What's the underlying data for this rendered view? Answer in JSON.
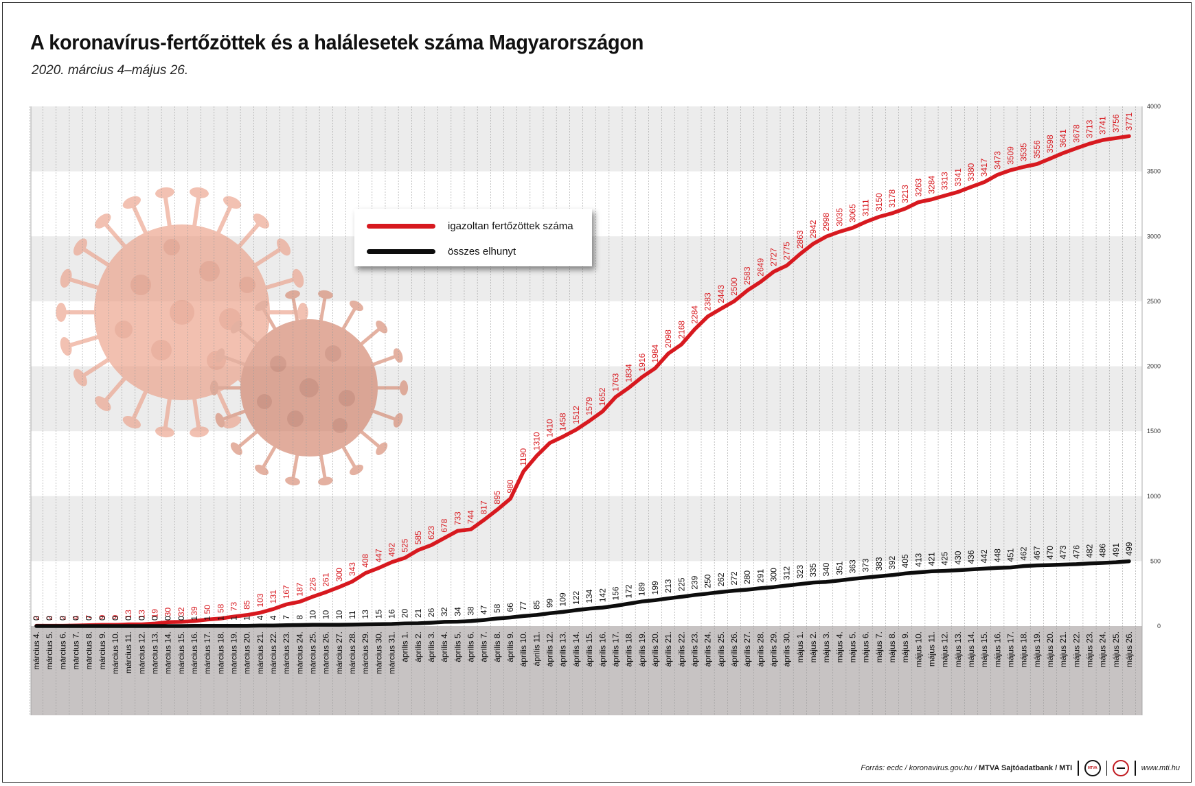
{
  "title": "A koronavírus-fertőzöttek és a halálesetek száma Magyarországon",
  "subtitle": "2020. március 4–május 26.",
  "legend": {
    "infected_label": "igazoltan fertőzöttek száma",
    "deaths_label": "összes elhunyt"
  },
  "colors": {
    "infected": "#d7191f",
    "deaths": "#0d0d0d",
    "band_gray": "#ececec",
    "date_band": "#c7c3c3"
  },
  "footer": {
    "source": "Forrás: ecdc / koronavirus.gov.hu /",
    "org": "MTVA Sajtóadatbank / MTI",
    "logo1_text": "MTVA",
    "website": "www.mti.hu"
  },
  "chart_data": {
    "type": "line",
    "ylim": [
      0,
      4000
    ],
    "yticks": [
      0,
      500,
      1000,
      1500,
      2000,
      2500,
      3000,
      3500,
      4000
    ],
    "categories": [
      "március 4.",
      "március 5.",
      "március 6.",
      "március 7.",
      "március 8.",
      "március 9.",
      "március 10.",
      "március 11.",
      "március 12.",
      "március 13.",
      "március 14.",
      "március 15.",
      "március 16.",
      "március 17.",
      "március 18.",
      "március 19.",
      "március 20.",
      "március 21.",
      "március 22.",
      "március 23.",
      "március 24.",
      "március 25.",
      "március 26.",
      "március 27.",
      "március 28.",
      "március 29.",
      "március 30.",
      "március 31.",
      "április 1.",
      "április 2.",
      "április 3.",
      "április 4.",
      "április 5.",
      "április 6.",
      "április 7.",
      "április 8.",
      "április 9.",
      "április 10.",
      "április 11.",
      "április 12.",
      "április 13.",
      "április 14.",
      "április 15.",
      "április 16.",
      "április 17.",
      "április 18.",
      "április 19.",
      "április 20.",
      "április 21.",
      "április 22.",
      "április 23.",
      "április 24.",
      "április 25.",
      "április 26.",
      "április 27.",
      "április 28.",
      "április 29.",
      "április 30.",
      "május 1.",
      "május 2.",
      "május 3.",
      "május 4.",
      "május 5.",
      "május 6.",
      "május 7.",
      "május 8.",
      "május 9.",
      "május 10.",
      "május 11.",
      "május 12.",
      "május 13.",
      "május 14.",
      "május 15.",
      "május 16.",
      "május 17.",
      "május 18.",
      "május 19.",
      "május 20.",
      "május 21.",
      "május 22.",
      "május 23.",
      "május 24.",
      "május 25.",
      "május 26."
    ],
    "series": [
      {
        "name": "igazoltan fertőzöttek száma",
        "values": [
          2,
          2,
          2,
          4,
          7,
          9,
          9,
          13,
          13,
          19,
          30,
          32,
          39,
          50,
          58,
          73,
          85,
          103,
          131,
          167,
          187,
          226,
          261,
          300,
          343,
          408,
          447,
          492,
          525,
          585,
          623,
          678,
          733,
          744,
          817,
          895,
          980,
          1190,
          1310,
          1410,
          1458,
          1512,
          1579,
          1652,
          1763,
          1834,
          1916,
          1984,
          2098,
          2168,
          2284,
          2383,
          2443,
          2500,
          2583,
          2649,
          2727,
          2775,
          2863,
          2942,
          2998,
          3035,
          3065,
          3111,
          3150,
          3178,
          3213,
          3263,
          3284,
          3313,
          3341,
          3380,
          3417,
          3473,
          3509,
          3535,
          3556,
          3598,
          3641,
          3678,
          3713,
          3741,
          3756,
          3771
        ]
      },
      {
        "name": "összes elhunyt",
        "values": [
          0,
          0,
          0,
          0,
          0,
          0,
          0,
          0,
          0,
          0,
          0,
          0,
          1,
          1,
          1,
          1,
          1,
          4,
          4,
          7,
          8,
          10,
          10,
          10,
          11,
          13,
          15,
          16,
          20,
          21,
          26,
          32,
          34,
          38,
          47,
          58,
          66,
          77,
          85,
          99,
          109,
          122,
          134,
          142,
          156,
          172,
          189,
          199,
          213,
          225,
          239,
          250,
          262,
          272,
          280,
          291,
          300,
          312,
          323,
          335,
          340,
          351,
          363,
          373,
          383,
          392,
          405,
          413,
          421,
          425,
          430,
          436,
          442,
          448,
          451,
          462,
          467,
          470,
          473,
          476,
          482,
          486,
          491,
          499
        ]
      }
    ]
  }
}
